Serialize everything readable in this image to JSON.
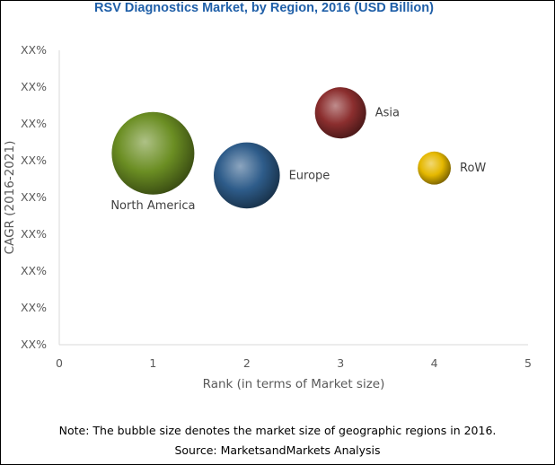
{
  "chart_data": {
    "type": "bubble",
    "title": "RSV Diagnostics Market, by Region, 2016 (USD Billion)",
    "xlabel": "Rank (in terms of Market size)",
    "ylabel": "CAGR (2016-2021)",
    "xlim": [
      0,
      5
    ],
    "xticks": [
      "0",
      "1",
      "2",
      "3",
      "4",
      "5"
    ],
    "ytick_labels": [
      "XX%",
      "XX%",
      "XX%",
      "XX%",
      "XX%",
      "XX%",
      "XX%",
      "XX%",
      "XX%"
    ],
    "ylim": [
      0,
      8
    ],
    "grid": false,
    "points": [
      {
        "name": "North America",
        "x": 1,
        "y": 5.2,
        "relative_size": 1.0,
        "color": "#6B8E23"
      },
      {
        "name": "Europe",
        "x": 2,
        "y": 4.6,
        "relative_size": 0.8,
        "color": "#2E5C8A"
      },
      {
        "name": "Asia",
        "x": 3,
        "y": 6.3,
        "relative_size": 0.62,
        "color": "#8B2E2E"
      },
      {
        "name": "RoW",
        "x": 4,
        "y": 4.8,
        "relative_size": 0.4,
        "color": "#E5B800"
      }
    ]
  },
  "footer": {
    "note": "Note: The bubble size denotes the market size of geographic regions in 2016.",
    "source": "Source: MarketsandMarkets Analysis"
  }
}
